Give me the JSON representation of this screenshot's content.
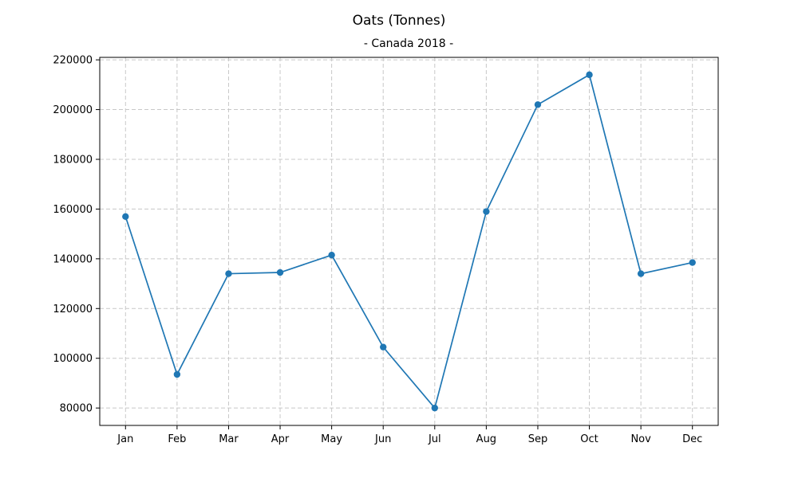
{
  "chart_data": {
    "type": "line",
    "title": "Oats (Tonnes)",
    "subtitle": "- Canada 2018 -",
    "xlabel": "",
    "ylabel": "",
    "categories": [
      "Jan",
      "Feb",
      "Mar",
      "Apr",
      "May",
      "Jun",
      "Jul",
      "Aug",
      "Sep",
      "Oct",
      "Nov",
      "Dec"
    ],
    "series": [
      {
        "values": [
          157000,
          93500,
          134000,
          134500,
          141500,
          104500,
          80000,
          159000,
          202000,
          214000,
          134000,
          138500
        ],
        "color": "#1f77b4"
      }
    ],
    "ylim": [
      73000,
      221000
    ],
    "yticks": [
      80000,
      100000,
      120000,
      140000,
      160000,
      180000,
      200000,
      220000
    ],
    "grid": true,
    "legend": "none"
  }
}
